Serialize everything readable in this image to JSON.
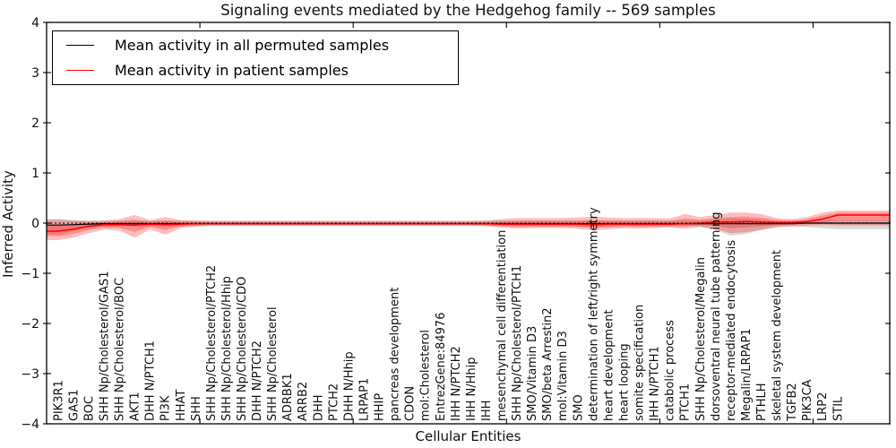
{
  "title": "Signaling events mediated by the Hedgehog family -- 569 samples",
  "xaxis_title": "Cellular Entities",
  "yaxis_title": "Inferred Activity",
  "legend": {
    "items": [
      {
        "label": "Mean activity in all permuted samples",
        "color": "#000000"
      },
      {
        "label": "Mean activity in patient samples",
        "color": "#ff0000"
      }
    ]
  },
  "chart_data": {
    "type": "line",
    "title": "Signaling events mediated by the Hedgehog family -- 569 samples",
    "xlabel": "Cellular Entities",
    "ylabel": "Inferred Activity",
    "ylim": [
      -4,
      4
    ],
    "xlim": [
      0,
      55
    ],
    "yticklabels": [
      "4",
      "3",
      "2",
      "1",
      "0",
      "−1",
      "−2",
      "−3",
      "−4"
    ],
    "ytick_values": [
      4,
      3,
      2,
      1,
      0,
      -1,
      -2,
      -3,
      -4
    ],
    "xtick_values": [
      10,
      20,
      30,
      40,
      50
    ],
    "grid": false,
    "legend_position": "upper left",
    "zero_line": {
      "style": "dotted",
      "color": "#000000"
    },
    "categories": [
      "PIK3R1",
      "GAS1",
      "BOC",
      "SHH Np/Cholesterol/GAS1",
      "SHH Np/Cholesterol/BOC",
      "AKT1",
      "DHH N/PTCH1",
      "PI3K",
      "HHAT",
      "SHH",
      "SHH Np/Cholesterol/PTCH2",
      "SHH Np/Cholesterol/Hhip",
      "SHH Np/Cholesterol/CDO",
      "DHH N/PTCH2",
      "SHH Np/Cholesterol",
      "ADRBK1",
      "ARRB2",
      "DHH",
      "PTCH2",
      "DHH N/Hhip",
      "LRPAP1",
      "HHIP",
      "pancreas development",
      "CDON",
      "mol:Cholesterol",
      "EntrezGene:84976",
      "IHH N/PTCH2",
      "IHH N/Hhip",
      "IHH",
      "mesenchymal cell differentiation",
      "SHH Np/Cholesterol/PTCH1",
      "SMO/Vitamin D3",
      "SMO/beta Arrestin2",
      "mol:Vitamin D3",
      "SMO",
      "determination of left/right symmetry",
      "heart development",
      "heart looping",
      "somite specification",
      "IHH N/PTCH1",
      "catabolic process",
      "PTCH1",
      "SHH Np/Cholesterol/Megalin",
      "dorsoventral neural tube patterning",
      "receptor-mediated endocytosis",
      "Megalin/LRPAP1",
      "PTHLH",
      "skeletal system development",
      "TGFB2",
      "PIK3CA",
      "LRP2",
      "STIL"
    ],
    "series": [
      {
        "name": "Mean activity in all permuted samples",
        "color": "#000000",
        "band_color": "rgba(130,130,130,0.30)",
        "values": [
          -0.04,
          -0.03,
          -0.02,
          -0.01,
          -0.01,
          -0.01,
          -0.01,
          -0.01,
          -0.01,
          -0.01,
          -0.01,
          -0.01,
          -0.01,
          -0.01,
          -0.01,
          -0.01,
          -0.01,
          -0.01,
          -0.01,
          -0.01,
          -0.01,
          -0.01,
          -0.01,
          -0.01,
          -0.01,
          -0.01,
          -0.01,
          -0.01,
          -0.01,
          -0.01,
          -0.01,
          -0.01,
          -0.01,
          -0.01,
          -0.01,
          -0.01,
          -0.01,
          -0.01,
          -0.01,
          -0.01,
          -0.01,
          -0.01,
          -0.01,
          -0.01,
          -0.01,
          -0.01,
          -0.01,
          -0.01,
          -0.01,
          0.0,
          0.0,
          0.0
        ],
        "band_upper": [
          0.08,
          0.06,
          0.05,
          0.05,
          0.05,
          0.05,
          0.05,
          0.05,
          0.05,
          0.05,
          0.05,
          0.05,
          0.05,
          0.05,
          0.05,
          0.05,
          0.05,
          0.05,
          0.05,
          0.05,
          0.05,
          0.05,
          0.05,
          0.05,
          0.05,
          0.05,
          0.05,
          0.05,
          0.05,
          0.05,
          0.05,
          0.05,
          0.05,
          0.05,
          0.05,
          0.05,
          0.05,
          0.05,
          0.05,
          0.05,
          0.05,
          0.05,
          0.05,
          0.07,
          0.09,
          0.08,
          0.07,
          0.05,
          0.05,
          0.05,
          0.06,
          0.06
        ],
        "band_lower": [
          -0.22,
          -0.16,
          -0.1,
          -0.07,
          -0.06,
          -0.06,
          -0.06,
          -0.06,
          -0.06,
          -0.06,
          -0.06,
          -0.06,
          -0.06,
          -0.06,
          -0.06,
          -0.06,
          -0.06,
          -0.06,
          -0.06,
          -0.06,
          -0.06,
          -0.06,
          -0.06,
          -0.06,
          -0.06,
          -0.06,
          -0.06,
          -0.06,
          -0.06,
          -0.06,
          -0.06,
          -0.06,
          -0.06,
          -0.06,
          -0.06,
          -0.08,
          -0.06,
          -0.06,
          -0.06,
          -0.06,
          -0.06,
          -0.06,
          -0.06,
          -0.14,
          -0.25,
          -0.22,
          -0.13,
          -0.08,
          -0.07,
          -0.08,
          -0.1,
          -0.12
        ]
      },
      {
        "name": "Mean activity in patient samples",
        "color": "#ff0000",
        "band_color": "rgba(255,0,0,0.26)",
        "inner_band_ratio": 0.55,
        "values": [
          -0.16,
          -0.12,
          -0.06,
          -0.03,
          -0.03,
          -0.04,
          -0.02,
          -0.03,
          -0.02,
          -0.01,
          -0.01,
          -0.01,
          -0.01,
          -0.01,
          -0.01,
          -0.01,
          -0.01,
          -0.01,
          -0.01,
          -0.01,
          -0.01,
          -0.01,
          -0.01,
          -0.01,
          -0.01,
          -0.01,
          -0.01,
          -0.01,
          -0.01,
          -0.02,
          -0.02,
          -0.02,
          -0.02,
          -0.02,
          -0.02,
          -0.03,
          -0.02,
          -0.02,
          -0.02,
          -0.02,
          -0.02,
          -0.01,
          0.0,
          0.02,
          0.02,
          0.03,
          0.02,
          0.01,
          0.01,
          0.03,
          0.08,
          0.16
        ],
        "band_upper": [
          0.07,
          0.05,
          0.04,
          0.05,
          0.08,
          0.16,
          0.06,
          0.12,
          0.06,
          0.05,
          0.04,
          0.04,
          0.04,
          0.04,
          0.04,
          0.04,
          0.04,
          0.04,
          0.04,
          0.04,
          0.04,
          0.04,
          0.04,
          0.04,
          0.04,
          0.04,
          0.04,
          0.04,
          0.05,
          0.08,
          0.1,
          0.1,
          0.1,
          0.1,
          0.11,
          0.13,
          0.11,
          0.1,
          0.1,
          0.1,
          0.09,
          0.18,
          0.12,
          0.16,
          0.21,
          0.21,
          0.18,
          0.1,
          0.08,
          0.12,
          0.21,
          0.25
        ],
        "band_lower": [
          -0.34,
          -0.29,
          -0.2,
          -0.13,
          -0.15,
          -0.29,
          -0.12,
          -0.23,
          -0.1,
          -0.07,
          -0.05,
          -0.05,
          -0.05,
          -0.05,
          -0.05,
          -0.05,
          -0.05,
          -0.05,
          -0.05,
          -0.05,
          -0.05,
          -0.05,
          -0.05,
          -0.05,
          -0.05,
          -0.05,
          -0.05,
          -0.05,
          -0.06,
          -0.09,
          -0.11,
          -0.1,
          -0.1,
          -0.1,
          -0.11,
          -0.15,
          -0.12,
          -0.1,
          -0.11,
          -0.1,
          -0.09,
          -0.11,
          -0.08,
          -0.12,
          -0.2,
          -0.18,
          -0.14,
          -0.08,
          -0.06,
          -0.05,
          -0.04,
          -0.05
        ]
      }
    ]
  }
}
